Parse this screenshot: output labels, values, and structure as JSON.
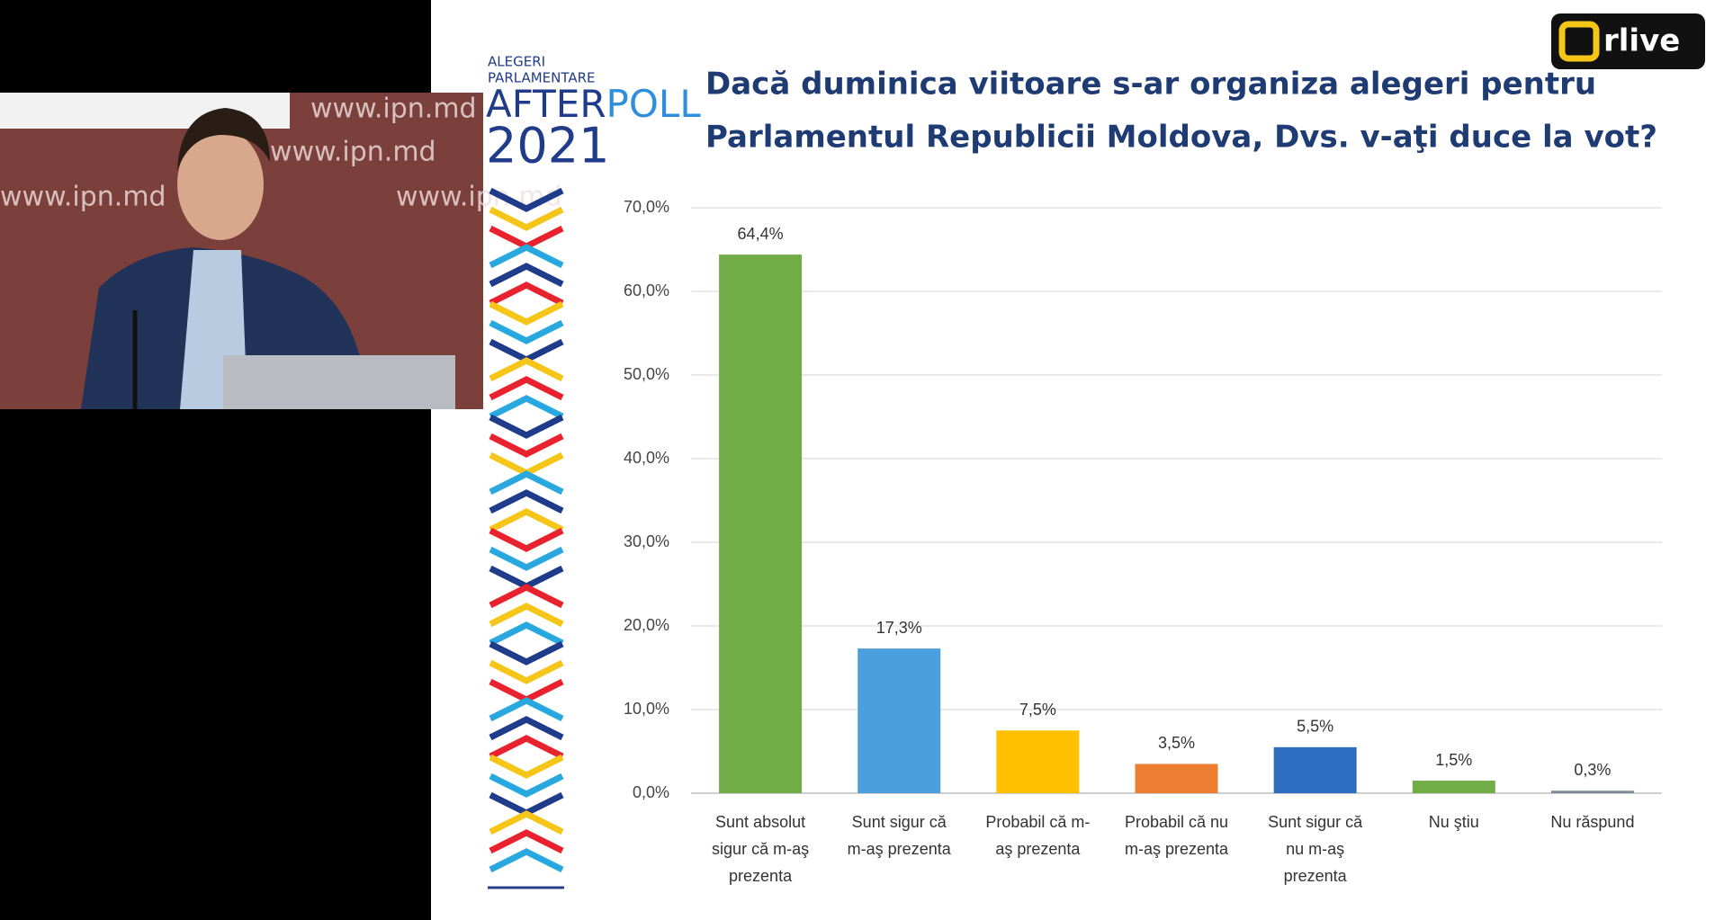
{
  "chart_data": {
    "type": "bar",
    "title": [
      "Dacă duminica viitoare s-ar organiza alegeri pentru",
      "Parlamentul Republicii Moldova, Dvs. v-aţi duce la vot?"
    ],
    "categories": [
      "Sunt absolut\nsigur că m-aş\nprezenta",
      "Sunt sigur că\nm-aş prezenta",
      "Probabil că m-\naş prezenta",
      "Probabil că nu\nm-aş prezenta",
      "Sunt sigur că\nnu m-aş\nprezenta",
      "Nu ştiu",
      "Nu răspund"
    ],
    "values": [
      64.4,
      17.3,
      7.5,
      3.5,
      5.5,
      1.5,
      0.3
    ],
    "value_labels": [
      "64,4%",
      "17,3%",
      "7,5%",
      "3,5%",
      "5,5%",
      "1,5%",
      "0,3%"
    ],
    "colors": [
      "#70ad47",
      "#4a9fdc",
      "#ffc000",
      "#ed7d31",
      "#2e6ec0",
      "#70ad47",
      "#7f8c9a"
    ],
    "ylim": [
      0,
      70
    ],
    "yticks": [
      {
        "value": 0,
        "label": "0,0%"
      },
      {
        "value": 10,
        "label": "10,0%"
      },
      {
        "value": 20,
        "label": "20,0%"
      },
      {
        "value": 30,
        "label": "30,0%"
      },
      {
        "value": 40,
        "label": "40,0%"
      },
      {
        "value": 50,
        "label": "50,0%"
      },
      {
        "value": 60,
        "label": "60,0%"
      },
      {
        "value": 70,
        "label": "70,0%"
      }
    ],
    "grid": true
  },
  "logo": {
    "line1": "ALEGERI",
    "line2": "PARLAMENTARE",
    "after": "AFTER",
    "poll": "POLL",
    "year": "2021"
  },
  "channel_logo": "rlive",
  "video_watermark": "www.ipn.md"
}
